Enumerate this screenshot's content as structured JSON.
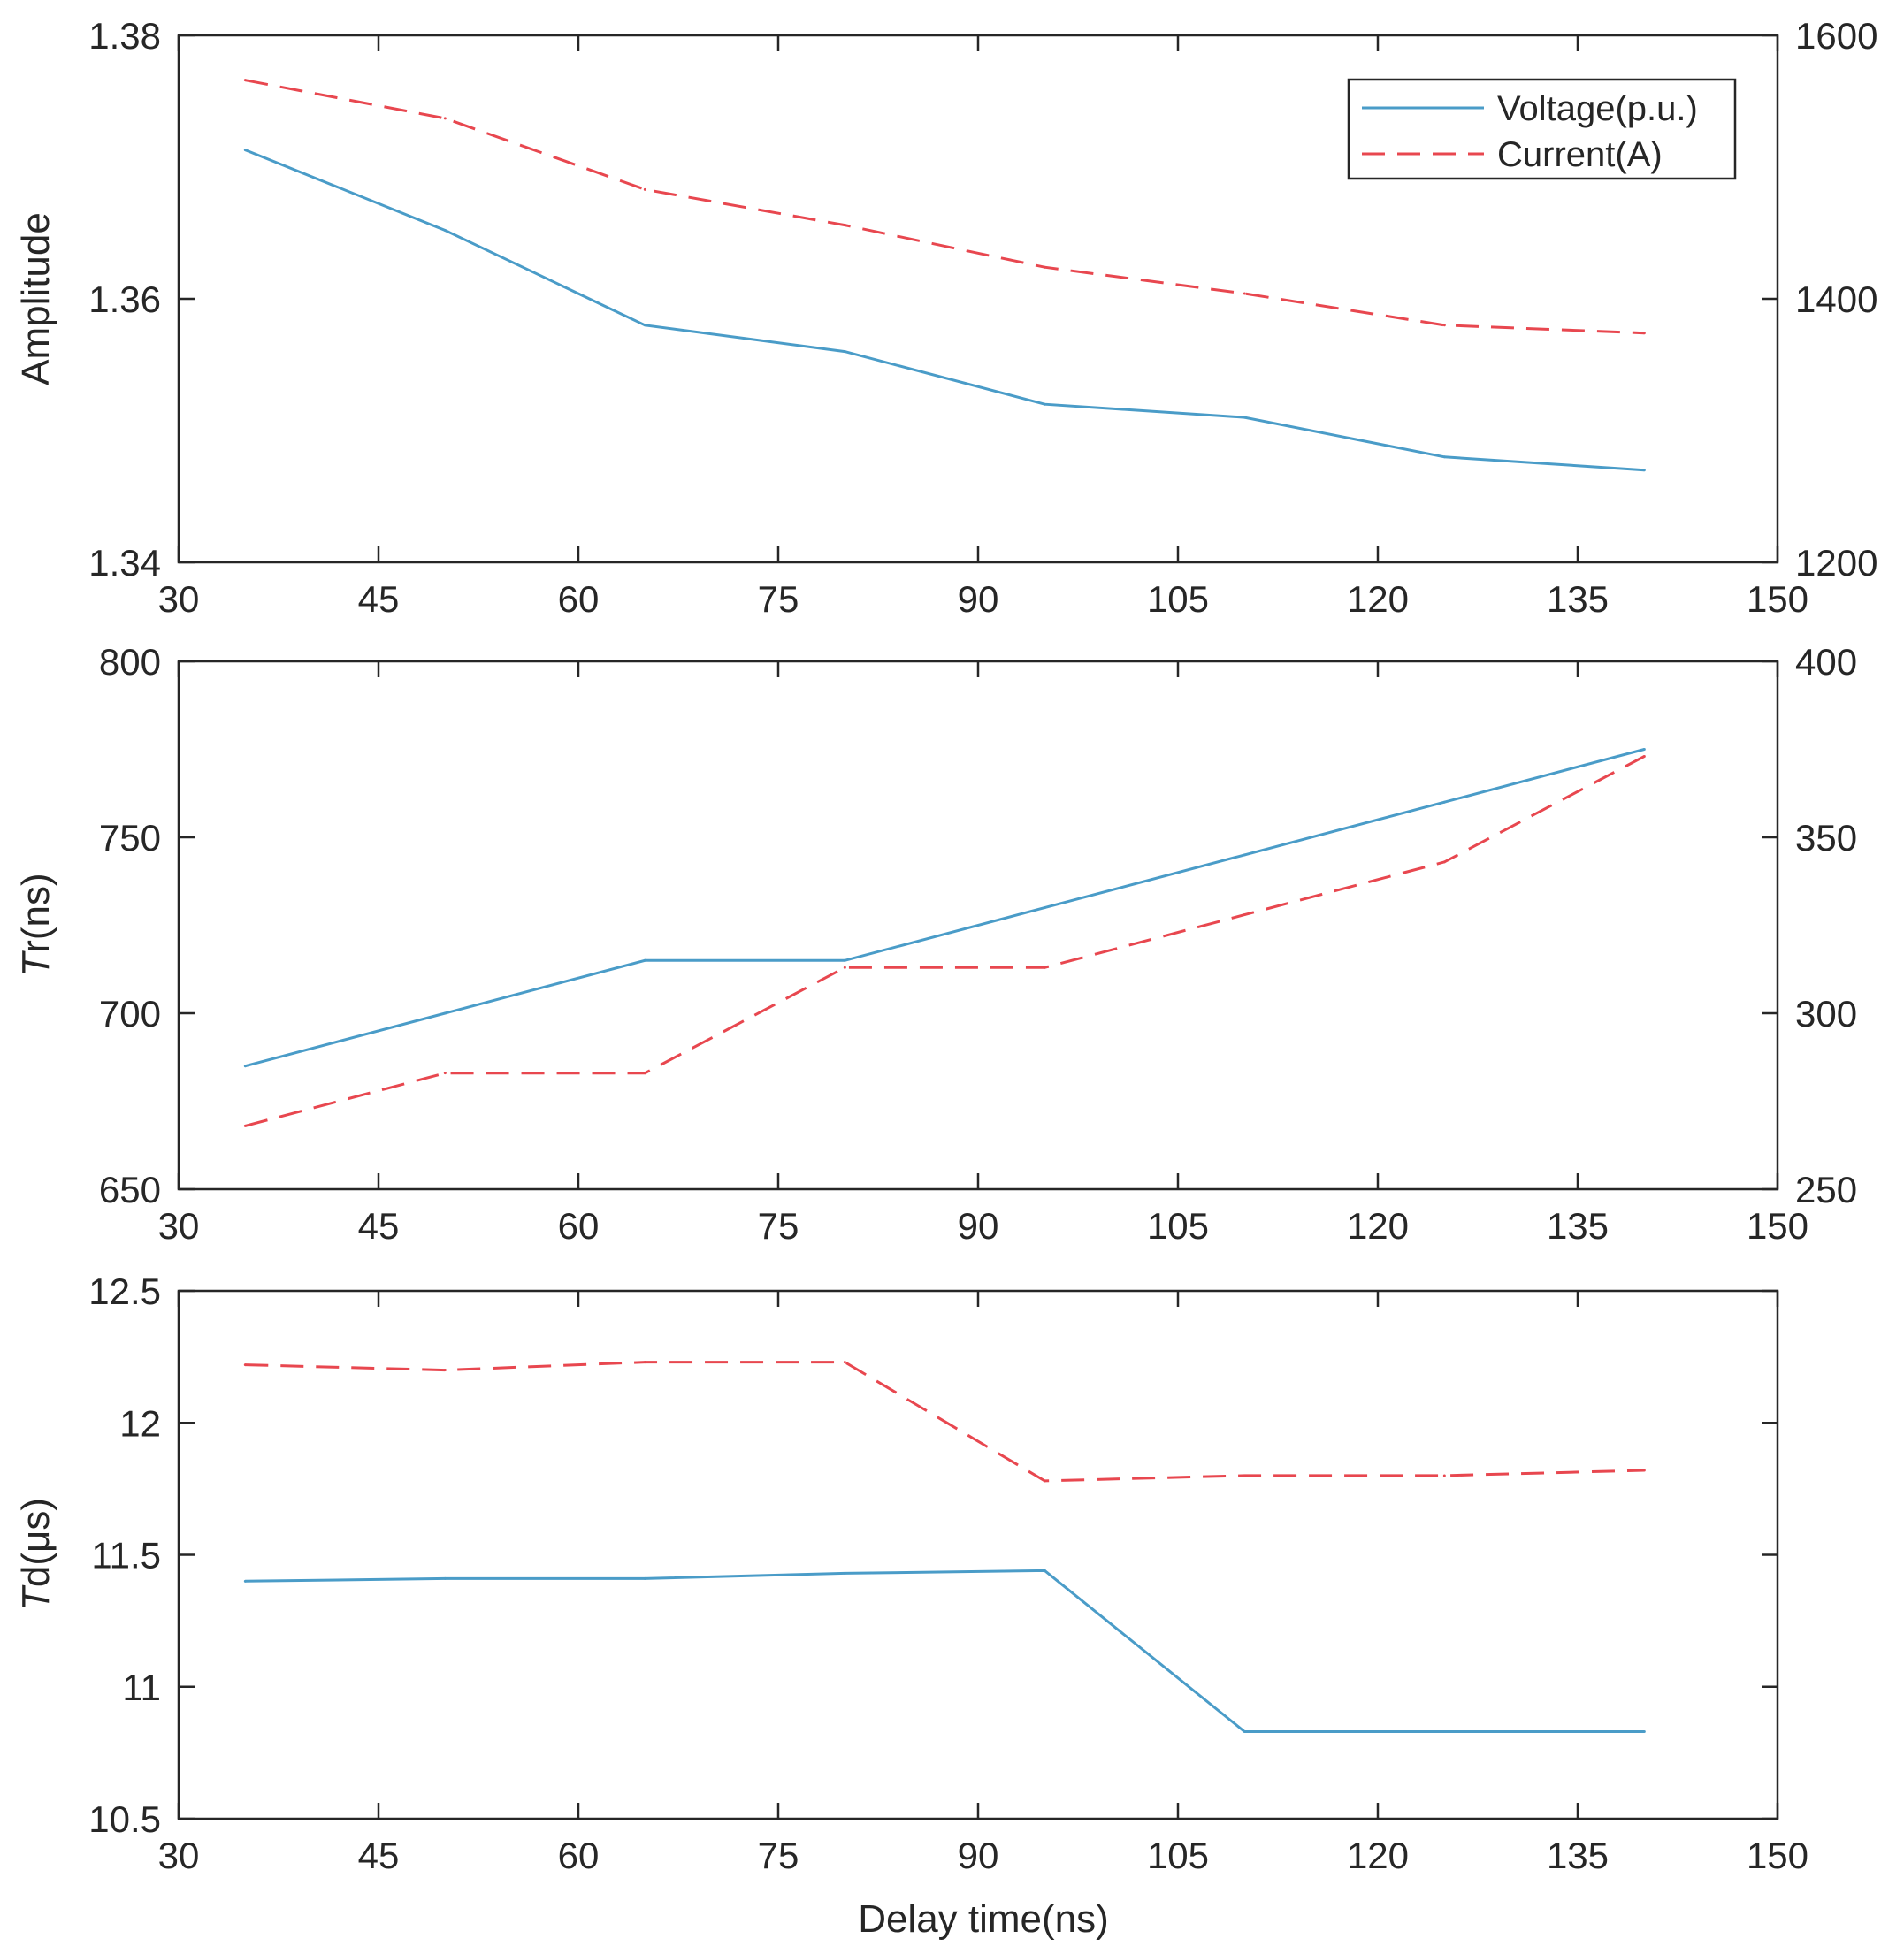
{
  "colors": {
    "voltage": "#4a9cc8",
    "current": "#e8474f",
    "axis": "#262626"
  },
  "legend": {
    "voltage_label": "Voltage(p.u.)",
    "current_label": "Current(A)",
    "position": "top-right"
  },
  "xlabel": "Delay time(ns)",
  "chart_data": [
    {
      "type": "line",
      "title": "",
      "xlabel": "",
      "ylabel": "Amplitude",
      "y2label": "",
      "xlim": [
        30,
        150
      ],
      "xticks": [
        "30",
        "45",
        "60",
        "75",
        "90",
        "105",
        "120",
        "135",
        "150"
      ],
      "ylim": [
        1.34,
        1.38
      ],
      "yticks": [
        "1.34",
        "1.36",
        "1.38"
      ],
      "y2lim": [
        1200,
        1600
      ],
      "y2ticks": [
        "1200",
        "1400",
        "1600"
      ],
      "x": [
        35,
        50,
        65,
        80,
        95,
        110,
        125,
        140
      ],
      "series": [
        {
          "name": "Voltage(p.u.)",
          "axis": "left",
          "style": "solid",
          "values": [
            1.3713,
            1.3652,
            1.358,
            1.356,
            1.352,
            1.351,
            1.348,
            1.347
          ]
        },
        {
          "name": "Current(A)",
          "axis": "right",
          "style": "dashed",
          "values": [
            1566,
            1537,
            1483,
            1456,
            1424,
            1404,
            1380,
            1374
          ]
        }
      ],
      "grid": false
    },
    {
      "type": "line",
      "title": "",
      "xlabel": "",
      "ylabel": "Tr(ns)",
      "y2label": "",
      "xlim": [
        30,
        150
      ],
      "xticks": [
        "30",
        "45",
        "60",
        "75",
        "90",
        "105",
        "120",
        "135",
        "150"
      ],
      "ylim": [
        650,
        800
      ],
      "yticks": [
        "650",
        "700",
        "750",
        "800"
      ],
      "y2lim": [
        250,
        400
      ],
      "y2ticks": [
        "250",
        "300",
        "350",
        "400"
      ],
      "x": [
        35,
        50,
        65,
        80,
        95,
        110,
        125,
        140
      ],
      "series": [
        {
          "name": "Voltage(p.u.)",
          "axis": "left",
          "style": "solid",
          "values": [
            685,
            700,
            715,
            715,
            730,
            745,
            760,
            775
          ]
        },
        {
          "name": "Current(A)",
          "axis": "right",
          "style": "dashed",
          "values": [
            268,
            283,
            283,
            313,
            313,
            328,
            343,
            373
          ]
        }
      ],
      "grid": false
    },
    {
      "type": "line",
      "title": "",
      "xlabel": "Delay time(ns)",
      "ylabel": "Td(μs)",
      "xlim": [
        30,
        150
      ],
      "xticks": [
        "30",
        "45",
        "60",
        "75",
        "90",
        "105",
        "120",
        "135",
        "150"
      ],
      "ylim": [
        10.5,
        12.5
      ],
      "yticks": [
        "10.5",
        "11",
        "11.5",
        "12",
        "12.5"
      ],
      "x": [
        35,
        50,
        65,
        80,
        95,
        110,
        125,
        140
      ],
      "series": [
        {
          "name": "Voltage(p.u.)",
          "axis": "left",
          "style": "solid",
          "values": [
            11.4,
            11.41,
            11.41,
            11.43,
            11.44,
            10.83,
            10.83,
            10.83
          ]
        },
        {
          "name": "Current(A)",
          "axis": "left",
          "style": "dashed",
          "values": [
            12.22,
            12.2,
            12.23,
            12.23,
            11.78,
            11.8,
            11.8,
            11.82
          ]
        }
      ],
      "grid": false
    }
  ]
}
